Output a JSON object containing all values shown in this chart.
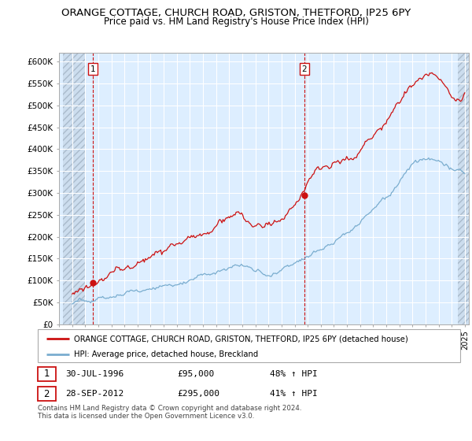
{
  "title": "ORANGE COTTAGE, CHURCH ROAD, GRISTON, THETFORD, IP25 6PY",
  "subtitle": "Price paid vs. HM Land Registry's House Price Index (HPI)",
  "ylabel_ticks": [
    "£0",
    "£50K",
    "£100K",
    "£150K",
    "£200K",
    "£250K",
    "£300K",
    "£350K",
    "£400K",
    "£450K",
    "£500K",
    "£550K",
    "£600K"
  ],
  "ytick_values": [
    0,
    50000,
    100000,
    150000,
    200000,
    250000,
    300000,
    350000,
    400000,
    450000,
    500000,
    550000,
    600000
  ],
  "ylim": [
    0,
    620000
  ],
  "xlim_start": 1994.3,
  "xlim_end": 2025.3,
  "hpi_color": "#7aadcf",
  "price_color": "#cc1111",
  "purchase1_date": 1996.58,
  "purchase1_price": 95000,
  "purchase2_date": 2012.75,
  "purchase2_price": 295000,
  "legend_label_red": "ORANGE COTTAGE, CHURCH ROAD, GRISTON, THETFORD, IP25 6PY (detached house)",
  "legend_label_blue": "HPI: Average price, detached house, Breckland",
  "annotation1_label": "1",
  "annotation2_label": "2",
  "footer": "Contains HM Land Registry data © Crown copyright and database right 2024.\nThis data is licensed under the Open Government Licence v3.0.",
  "bg_color": "#ddeeff",
  "grid_color": "#ffffff",
  "title_fontsize": 9.5,
  "subtitle_fontsize": 8.5
}
